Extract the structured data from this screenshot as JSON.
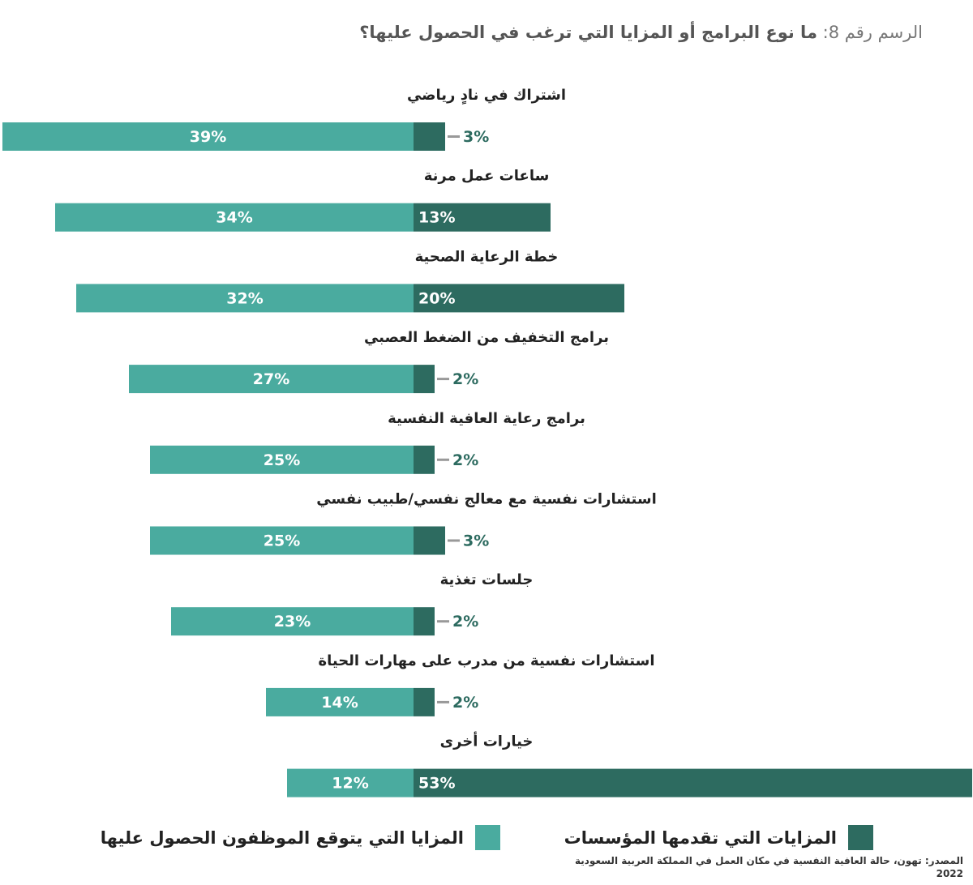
{
  "chart_data": {
    "type": "diverging-bar",
    "title_prefix": "الرسم رقم 8:",
    "title": "ما نوع البرامج أو المزايا التي ترغب في الحصول عليها؟",
    "categories": [
      "اشتراك في نادٍ رياضي",
      "ساعات عمل مرنة",
      "خطة الرعاية الصحية",
      "برامج التخفيف من الضغط العصبي",
      "برامج رعاية العافية النفسية",
      "استشارات نفسية مع معالج نفسي/طبيب نفسي",
      "جلسات تغذية",
      "استشارات نفسية من مدرب على مهارات الحياة",
      "خيارات أخرى"
    ],
    "series": [
      {
        "name": "المزايا التي يتوقع الموظفون الحصول عليها",
        "color": "#4aab9f",
        "values": [
          39,
          34,
          32,
          27,
          25,
          25,
          23,
          14,
          12
        ],
        "value_labels": [
          "39%",
          "34%",
          "32%",
          "27%",
          "25%",
          "25%",
          "23%",
          "14%",
          "12%"
        ]
      },
      {
        "name": "المزايات التي تقدمها المؤسسات",
        "color": "#2d6b60",
        "values": [
          3,
          13,
          20,
          2,
          2,
          3,
          2,
          2,
          53
        ],
        "value_labels": [
          "3%",
          "13%",
          "20%",
          "2%",
          "2%",
          "3%",
          "2%",
          "2%",
          "53%"
        ]
      }
    ],
    "source": [
      "المصدر: تهون، حالة العافية النفسية في مكان العمل في المملكة العربية السعودية",
      "2022"
    ]
  }
}
